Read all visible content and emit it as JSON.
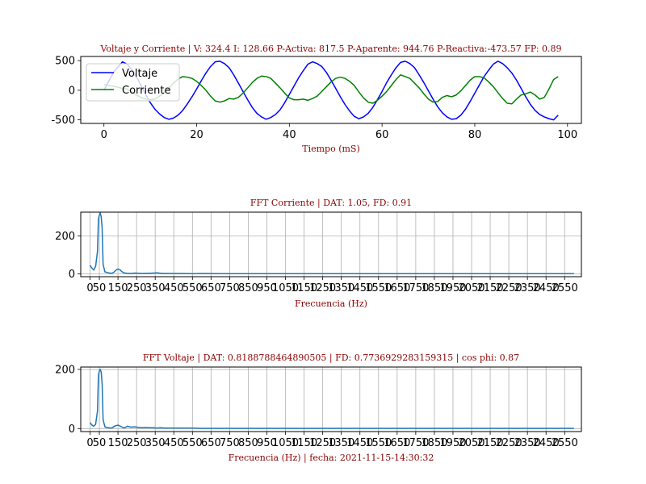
{
  "chart_data": [
    {
      "type": "line",
      "title": "Voltaje y Corriente | V: 324.4     I: 128.66      P-Activa: 817.5     P-Aparente: 944.76      P-Reactiva:-473.57     FP: 0.89",
      "xlabel": "Tiempo (mS)",
      "ylabel": "",
      "xlim": [
        -5,
        103
      ],
      "ylim": [
        -560,
        570
      ],
      "xticks": [
        0,
        20,
        40,
        60,
        80,
        100
      ],
      "yticks": [
        -500,
        0,
        500
      ],
      "grid": false,
      "legend": "top-left",
      "series": [
        {
          "name": "Voltaje",
          "color": "#0000ff",
          "x": [
            0,
            1,
            2,
            3,
            4,
            5,
            6,
            7,
            8,
            9,
            10,
            11,
            12,
            13,
            14,
            15,
            16,
            17,
            18,
            19,
            20,
            21,
            22,
            23,
            24,
            25,
            26,
            27,
            28,
            29,
            30,
            31,
            32,
            33,
            34,
            35,
            36,
            37,
            38,
            39,
            40,
            41,
            42,
            43,
            44,
            45,
            46,
            47,
            48,
            49,
            50,
            51,
            52,
            53,
            54,
            55,
            56,
            57,
            58,
            59,
            60,
            61,
            62,
            63,
            64,
            65,
            66,
            67,
            68,
            69,
            70,
            71,
            72,
            73,
            74,
            75,
            76,
            77,
            78,
            79,
            80,
            81,
            82,
            83,
            84,
            85,
            86,
            87,
            88,
            89,
            90,
            91,
            92,
            93,
            94,
            95,
            96,
            97,
            98
          ],
          "values": [
            0,
            150,
            290,
            390,
            480,
            440,
            350,
            230,
            80,
            -70,
            -210,
            -320,
            -400,
            -460,
            -490,
            -470,
            -420,
            -340,
            -230,
            -110,
            20,
            160,
            290,
            400,
            480,
            490,
            450,
            380,
            260,
            120,
            -20,
            -160,
            -290,
            -390,
            -450,
            -490,
            -460,
            -410,
            -330,
            -210,
            -70,
            70,
            210,
            330,
            440,
            480,
            450,
            400,
            300,
            170,
            30,
            -110,
            -240,
            -350,
            -440,
            -480,
            -450,
            -390,
            -290,
            -160,
            -20,
            130,
            260,
            380,
            470,
            490,
            450,
            380,
            260,
            130,
            -10,
            -150,
            -280,
            -380,
            -450,
            -490,
            -480,
            -420,
            -320,
            -190,
            -50,
            90,
            230,
            340,
            440,
            490,
            450,
            380,
            290,
            170,
            30,
            -110,
            -240,
            -340,
            -410,
            -450,
            -480,
            -500,
            -420
          ]
        },
        {
          "name": "Corriente",
          "color": "#008000",
          "x": [
            0,
            1,
            2,
            3,
            4,
            5,
            6,
            7,
            8,
            9,
            10,
            11,
            12,
            13,
            14,
            15,
            16,
            17,
            18,
            19,
            20,
            21,
            22,
            23,
            24,
            25,
            26,
            27,
            28,
            29,
            30,
            31,
            32,
            33,
            34,
            35,
            36,
            37,
            38,
            39,
            40,
            41,
            42,
            43,
            44,
            45,
            46,
            47,
            48,
            49,
            50,
            51,
            52,
            53,
            54,
            55,
            56,
            57,
            58,
            59,
            60,
            61,
            62,
            63,
            64,
            65,
            66,
            67,
            68,
            69,
            70,
            71,
            72,
            73,
            74,
            75,
            76,
            77,
            78,
            79,
            80,
            81,
            82,
            83,
            84,
            85,
            86,
            87,
            88,
            89,
            90,
            91,
            92,
            93,
            94,
            95,
            96,
            97,
            98
          ],
          "values": [
            100,
            80,
            70,
            50,
            30,
            20,
            -30,
            -80,
            -120,
            -150,
            -160,
            -150,
            -100,
            -40,
            30,
            120,
            190,
            230,
            220,
            200,
            150,
            80,
            0,
            -100,
            -180,
            -200,
            -180,
            -140,
            -150,
            -120,
            -50,
            40,
            130,
            200,
            240,
            230,
            200,
            120,
            40,
            -50,
            -130,
            -160,
            -160,
            -150,
            -170,
            -140,
            -100,
            -20,
            60,
            140,
            200,
            220,
            200,
            150,
            80,
            -30,
            -130,
            -200,
            -220,
            -170,
            -100,
            -20,
            80,
            180,
            260,
            230,
            200,
            120,
            40,
            -60,
            -150,
            -200,
            -190,
            -120,
            -90,
            -110,
            -80,
            -10,
            80,
            170,
            230,
            230,
            210,
            140,
            60,
            -40,
            -140,
            -220,
            -230,
            -150,
            -80,
            -60,
            -30,
            -80,
            -150,
            -120,
            20,
            180,
            230
          ]
        }
      ]
    },
    {
      "type": "line",
      "title": "FFT Corriente | DAT: 1.05, FD: 0.91",
      "xlabel": "Frecuencia (Hz)",
      "ylabel": "",
      "xlim": [
        -50,
        2640
      ],
      "ylim": [
        -15,
        325
      ],
      "xticks": [
        0,
        50,
        150,
        250,
        350,
        450,
        550,
        650,
        750,
        850,
        950,
        1050,
        1150,
        1250,
        1350,
        1450,
        1550,
        1650,
        1750,
        1850,
        1950,
        2050,
        2150,
        2250,
        2350,
        2450,
        2550
      ],
      "yticks": [
        0,
        200
      ],
      "grid": true,
      "series": [
        {
          "name": "",
          "color": "#1f77b4",
          "x": [
            0,
            10,
            20,
            30,
            40,
            45,
            50,
            55,
            60,
            65,
            70,
            80,
            90,
            100,
            110,
            120,
            130,
            140,
            150,
            160,
            170,
            180,
            190,
            200,
            220,
            240,
            260,
            280,
            300,
            320,
            340,
            360,
            380,
            400,
            450,
            500,
            550,
            600,
            700,
            800,
            900,
            1000,
            1200,
            1400,
            1600,
            1800,
            2000,
            2200,
            2400,
            2600
          ],
          "values": [
            45,
            30,
            20,
            40,
            120,
            290,
            310,
            320,
            300,
            240,
            50,
            10,
            8,
            5,
            3,
            4,
            10,
            20,
            25,
            22,
            12,
            6,
            4,
            3,
            2,
            4,
            3,
            2,
            3,
            3,
            4,
            5,
            3,
            2,
            2,
            2,
            1,
            2,
            1,
            1,
            1,
            1,
            1,
            1,
            1,
            1,
            1,
            1,
            1,
            1
          ]
        }
      ]
    },
    {
      "type": "line",
      "title": "FFT Voltaje |    DAT: 0.8188788464890505      |      FD: 0.7736929283159315     |   cos phi: 0.87",
      "xlabel": "Frecuencia (Hz)  |    fecha: 2021-11-15-14:30:32",
      "ylabel": "",
      "xlim": [
        -50,
        2640
      ],
      "ylim": [
        -10,
        208
      ],
      "xticks": [
        0,
        50,
        150,
        250,
        350,
        450,
        550,
        650,
        750,
        850,
        950,
        1050,
        1150,
        1250,
        1350,
        1450,
        1550,
        1650,
        1750,
        1850,
        1950,
        2050,
        2150,
        2250,
        2350,
        2450,
        2550
      ],
      "yticks": [
        0,
        200
      ],
      "grid": true,
      "series": [
        {
          "name": "",
          "color": "#1f77b4",
          "x": [
            0,
            10,
            20,
            30,
            40,
            45,
            50,
            55,
            60,
            65,
            70,
            80,
            90,
            100,
            110,
            120,
            130,
            140,
            150,
            160,
            170,
            180,
            190,
            200,
            220,
            240,
            260,
            280,
            300,
            320,
            340,
            360,
            380,
            400,
            450,
            500,
            550,
            600,
            700,
            800,
            900,
            1000,
            1200,
            1400,
            1600,
            1800,
            2000,
            2200,
            2400,
            2600
          ],
          "values": [
            20,
            12,
            8,
            15,
            60,
            180,
            195,
            200,
            190,
            150,
            30,
            6,
            4,
            3,
            2,
            3,
            8,
            10,
            12,
            9,
            6,
            3,
            4,
            8,
            5,
            6,
            4,
            3,
            4,
            3,
            3,
            2,
            3,
            2,
            2,
            2,
            2,
            1,
            1,
            1,
            1,
            1,
            1,
            1,
            1,
            1,
            1,
            1,
            1,
            1
          ]
        }
      ]
    }
  ]
}
